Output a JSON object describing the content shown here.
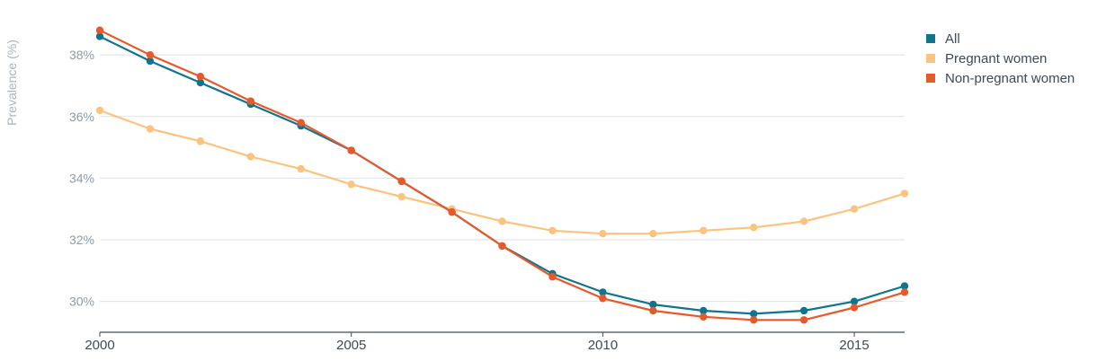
{
  "chart_data": {
    "type": "line",
    "ylabel": "Prevalence (%)",
    "xlim": [
      2000,
      2016
    ],
    "ylim": [
      29,
      39.2
    ],
    "x_ticks": [
      {
        "value": 2000,
        "label": "2000"
      },
      {
        "value": 2005,
        "label": "2005"
      },
      {
        "value": 2010,
        "label": "2010"
      },
      {
        "value": 2015,
        "label": "2015"
      }
    ],
    "y_ticks": [
      {
        "value": 30,
        "label": "30%"
      },
      {
        "value": 32,
        "label": "32%"
      },
      {
        "value": 34,
        "label": "34%"
      },
      {
        "value": 36,
        "label": "36%"
      },
      {
        "value": 38,
        "label": "38%"
      }
    ],
    "grid": "horizontal",
    "legend_position": "top-right",
    "x": [
      2000,
      2001,
      2002,
      2003,
      2004,
      2005,
      2006,
      2007,
      2008,
      2009,
      2010,
      2011,
      2012,
      2013,
      2014,
      2015,
      2016
    ],
    "series": [
      {
        "name": "All",
        "color": "#0e7490",
        "values": [
          38.6,
          37.8,
          37.1,
          36.4,
          35.7,
          34.9,
          33.9,
          32.9,
          31.8,
          30.9,
          30.3,
          29.9,
          29.7,
          29.6,
          29.7,
          30.0,
          30.5
        ]
      },
      {
        "name": "Pregnant women",
        "color": "#fac47f",
        "values": [
          36.2,
          35.6,
          35.2,
          34.7,
          34.3,
          33.8,
          33.4,
          33.0,
          32.6,
          32.3,
          32.2,
          32.2,
          32.3,
          32.4,
          32.6,
          33.0,
          33.5
        ]
      },
      {
        "name": "Non-pregnant women",
        "color": "#e8592a",
        "values": [
          38.8,
          38.0,
          37.3,
          36.5,
          35.8,
          34.9,
          33.9,
          32.9,
          31.8,
          30.8,
          30.1,
          29.7,
          29.5,
          29.4,
          29.4,
          29.8,
          30.3
        ]
      }
    ]
  }
}
